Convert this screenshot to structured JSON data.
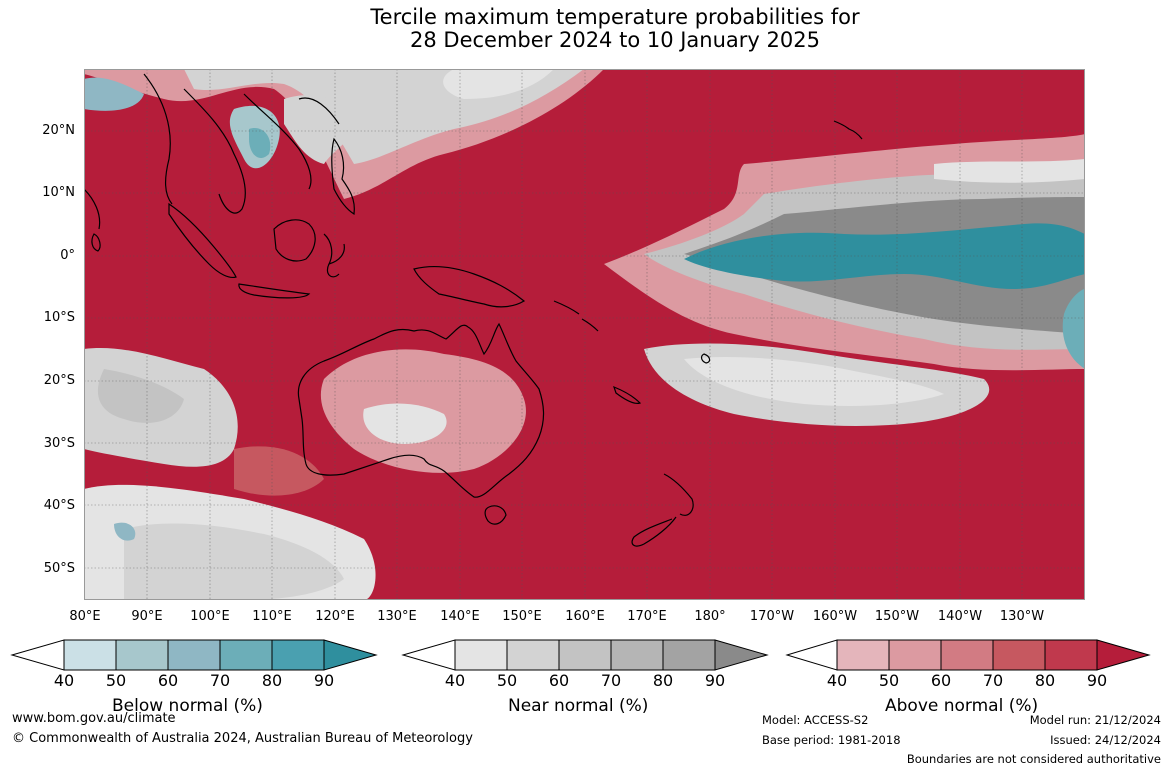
{
  "title": {
    "line1": "Tercile maximum temperature probabilities for",
    "line2": "28 December 2024 to 10 January 2025"
  },
  "map": {
    "lat_labels": [
      "20°N",
      "10°N",
      "0°",
      "10°S",
      "20°S",
      "30°S",
      "40°S",
      "50°S"
    ],
    "lon_labels": [
      "80°E",
      "90°E",
      "100°E",
      "110°E",
      "120°E",
      "130°E",
      "140°E",
      "150°E",
      "160°E",
      "170°E",
      "180°",
      "170°W",
      "160°W",
      "150°W",
      "140°W",
      "130°W"
    ],
    "colors": {
      "above_90": "#b51d3a",
      "above_80": "#c93549",
      "above_70": "#c65860",
      "above_60": "#d27b83",
      "above_50": "#dc9aa1",
      "above_40": "#e4b5bb",
      "near_40": "#e4e4e4",
      "near_50": "#d3d3d3",
      "near_60": "#c3c3c3",
      "near_70": "#b5b5b5",
      "near_80": "#a3a3a3",
      "near_90": "#8a8a8a",
      "below_50": "#a7c7cc",
      "below_70": "#6caeb8",
      "below_90": "#2f8f9e",
      "land_outline": "#000000"
    }
  },
  "colorbars": {
    "tick_labels": [
      "40",
      "50",
      "60",
      "70",
      "80",
      "90"
    ],
    "below": {
      "title": "Below normal (%)",
      "colors": [
        "#ffffff",
        "#cbe0e6",
        "#a7c7cc",
        "#8fb7c4",
        "#6caeb8",
        "#4aa0b0",
        "#2f8f9e"
      ]
    },
    "near": {
      "title": "Near normal (%)",
      "colors": [
        "#ffffff",
        "#e4e4e4",
        "#d3d3d3",
        "#c3c3c3",
        "#b5b5b5",
        "#a3a3a3",
        "#8a8a8a"
      ]
    },
    "above": {
      "title": "Above normal (%)",
      "colors": [
        "#ffffff",
        "#e4b5bb",
        "#dc9aa1",
        "#d27b83",
        "#c65860",
        "#c0394d",
        "#b51d3a"
      ]
    }
  },
  "footer": {
    "url": "www.bom.gov.au/climate",
    "copyright": "© Commonwealth of Australia 2024, Australian Bureau of Meteorology",
    "model": "Model: ACCESS-S2",
    "base_period": "Base period: 1981-2018",
    "model_run": "Model run: 21/12/2024",
    "issued": "Issued: 24/12/2024",
    "boundaries": "Boundaries are not considered authoritative"
  }
}
